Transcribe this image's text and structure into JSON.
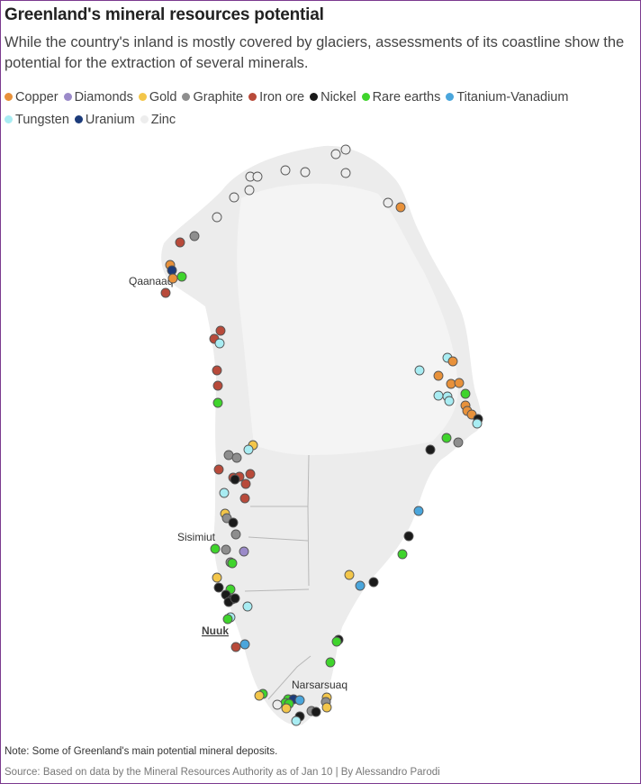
{
  "title": "Greenland's mineral resources potential",
  "subtitle": "While the country's inland is mostly covered by glaciers, assessments of its coastline show the potential for the extraction of several minerals.",
  "legend": [
    {
      "key": "copper",
      "label": "Copper",
      "color": "#e8913a"
    },
    {
      "key": "diamonds",
      "label": "Diamonds",
      "color": "#9b8ac9"
    },
    {
      "key": "gold",
      "label": "Gold",
      "color": "#f3c64a"
    },
    {
      "key": "graphite",
      "label": "Graphite",
      "color": "#8e8e8e"
    },
    {
      "key": "ironore",
      "label": "Iron ore",
      "color": "#b84a3a"
    },
    {
      "key": "nickel",
      "label": "Nickel",
      "color": "#1a1a1a"
    },
    {
      "key": "rareearths",
      "label": "Rare earths",
      "color": "#3fd42c"
    },
    {
      "key": "titanium",
      "label": "Titanium-Vanadium",
      "color": "#4aa6dc"
    },
    {
      "key": "tungsten",
      "label": "Tungsten",
      "color": "#a8ecf2"
    },
    {
      "key": "uranium",
      "label": "Uranium",
      "color": "#1c3b7a"
    },
    {
      "key": "zinc",
      "label": "Zinc",
      "color": "#ededed"
    }
  ],
  "places": [
    {
      "name": "Qaanaaq",
      "underline": false
    },
    {
      "name": "Sisimiut",
      "underline": false
    },
    {
      "name": "Nuuk",
      "underline": true
    },
    {
      "name": "Narsarsuaq",
      "underline": false
    }
  ],
  "note": "Note: Some of Greenland's main potential mineral deposits.",
  "source": "Source: Based on data by the Mineral Resources Authority as of Jan 10 | By Alessandro Parodi"
}
